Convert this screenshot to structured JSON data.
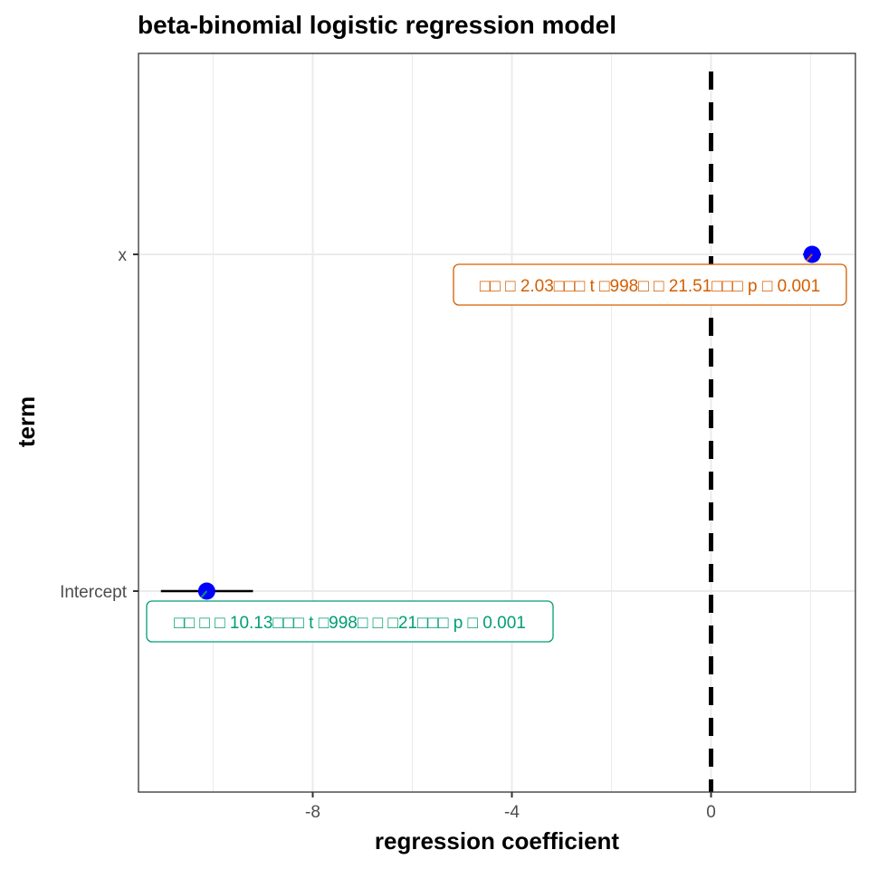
{
  "chart_data": {
    "type": "scatter",
    "title": "beta-binomial logistic regression model",
    "xlabel": "regression coefficient",
    "ylabel": "term",
    "x_ticks": [
      "-8",
      "-4",
      "0"
    ],
    "x_tick_values": [
      -8,
      -4,
      0
    ],
    "y_categories": [
      "x",
      "Intercept"
    ],
    "xlim": [
      -11.5,
      2.9
    ],
    "grid": true,
    "reference_line": {
      "x": 0,
      "style": "dashed"
    },
    "points": [
      {
        "term": "x",
        "estimate": 2.03,
        "conf_low": 1.85,
        "conf_high": 2.21,
        "label": "□□ □ 2.03□□□ t □998□ □ 21.51□□□ p □ 0.001",
        "label_color": "#d55e00"
      },
      {
        "term": "Intercept",
        "estimate": -10.13,
        "conf_low": -11.05,
        "conf_high": -9.2,
        "label": "□□ □ □ 10.13□□□ t □998□ □ □21□□□ p □ 0.001",
        "label_color": "#009e73"
      }
    ],
    "point_color": "#0000ff"
  }
}
